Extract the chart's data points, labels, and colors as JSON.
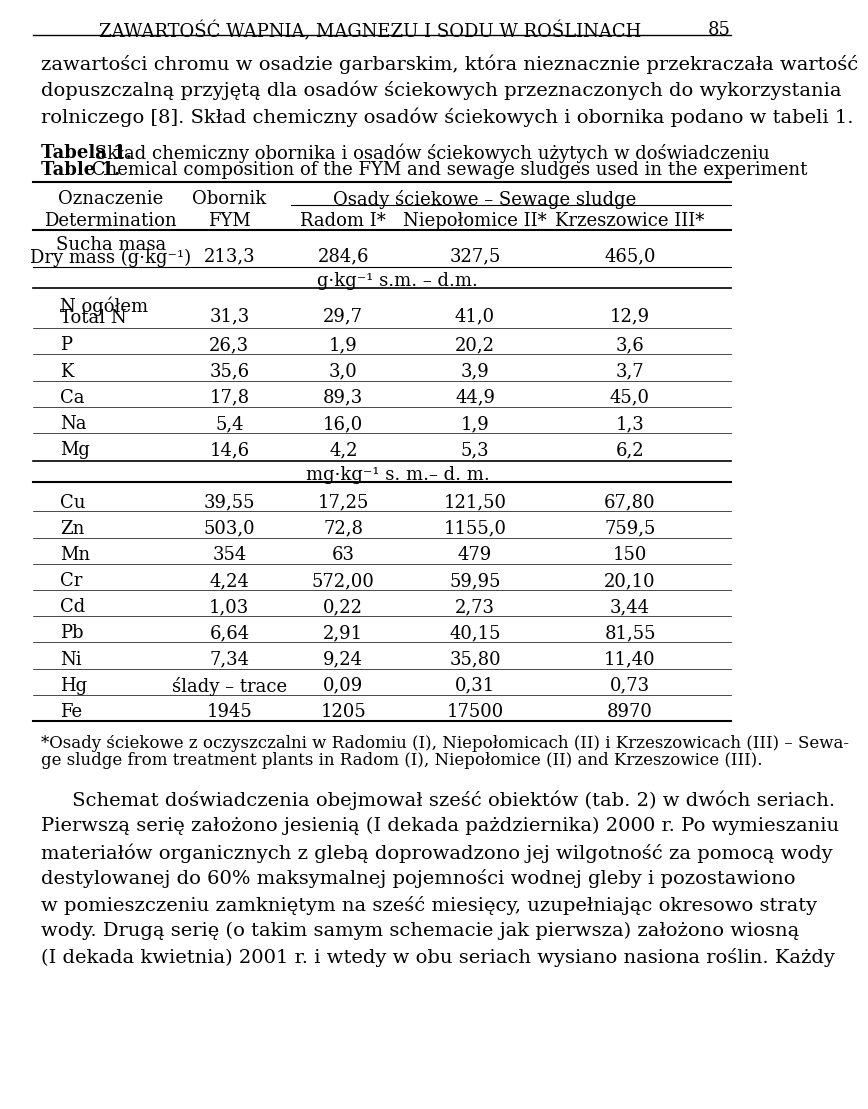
{
  "page_title": "ZAWARTOŚĆ WAPNIA, MAGNEZU I SODU W ROŚLINACH",
  "page_number": "85",
  "intro_lines": [
    "zawartości chromu w osadzie garbarskim, która nieznacznie przekraczała wartość",
    "dopuszczalną przyjętą dla osadów ściekowych przeznaczonych do wykorzystania",
    "rolniczego [8]. Skład chemiczny osadów ściekowych i obornika podano w tabeli 1."
  ],
  "table_caption_pl_bold": "Tabela 1.",
  "table_caption_pl_normal": " Skład chemiczny obornika i osadów ściekowych użytych w doświadczeniu",
  "table_caption_en_bold": "Table 1.",
  "table_caption_en_normal": " Chemical composition of the FYM and sewage sludges used in the experiment",
  "col_header1_pl": "Oznaczenie",
  "col_header1_en": "Determination",
  "col_header2_pl": "Obornik",
  "col_header2_en": "FYM",
  "col_header3": "Osady ściekowe – Sewage sludge",
  "col_header3a": "Radom I*",
  "col_header3b": "Niepołomice II*",
  "col_header3c": "Krzeszowice III*",
  "unit_row1": "g·kg⁻¹ s.m. – d.m.",
  "unit_row2": "mg·kg⁻¹ s. m.– d. m.",
  "dry_mass_pl": "Sucha masa",
  "dry_mass_en": "Dry mass (g·kg⁻¹)",
  "dry_mass_vals": [
    "213,3",
    "284,6",
    "327,5",
    "465,0"
  ],
  "g_rows": [
    {
      "label": "N ogółem\nTotal N",
      "vals": [
        "31,3",
        "29,7",
        "41,0",
        "12,9"
      ]
    },
    {
      "label": "P",
      "vals": [
        "26,3",
        "1,9",
        "20,2",
        "3,6"
      ]
    },
    {
      "label": "K",
      "vals": [
        "35,6",
        "3,0",
        "3,9",
        "3,7"
      ]
    },
    {
      "label": "Ca",
      "vals": [
        "17,8",
        "89,3",
        "44,9",
        "45,0"
      ]
    },
    {
      "label": "Na",
      "vals": [
        "5,4",
        "16,0",
        "1,9",
        "1,3"
      ]
    },
    {
      "label": "Mg",
      "vals": [
        "14,6",
        "4,2",
        "5,3",
        "6,2"
      ]
    }
  ],
  "mg_rows": [
    {
      "label": "Cu",
      "vals": [
        "39,55",
        "17,25",
        "121,50",
        "67,80"
      ]
    },
    {
      "label": "Zn",
      "vals": [
        "503,0",
        "72,8",
        "1155,0",
        "759,5"
      ]
    },
    {
      "label": "Mn",
      "vals": [
        "354",
        "63",
        "479",
        "150"
      ]
    },
    {
      "label": "Cr",
      "vals": [
        "4,24",
        "572,00",
        "59,95",
        "20,10"
      ]
    },
    {
      "label": "Cd",
      "vals": [
        "1,03",
        "0,22",
        "2,73",
        "3,44"
      ]
    },
    {
      "label": "Pb",
      "vals": [
        "6,64",
        "2,91",
        "40,15",
        "81,55"
      ]
    },
    {
      "label": "Ni",
      "vals": [
        "7,34",
        "9,24",
        "35,80",
        "11,40"
      ]
    },
    {
      "label": "Hg",
      "vals": [
        "ślady – trace",
        "0,09",
        "0,31",
        "0,73"
      ]
    },
    {
      "label": "Fe",
      "vals": [
        "1945",
        "1205",
        "17500",
        "8970"
      ]
    }
  ],
  "footnote_lines": [
    "*Osady ściekowe z oczyszczalni w Radomiu (I), Niepołomicach (II) i Krzeszowicach (III) – Sewa-",
    "ge sludge from treatment plants in Radom (I), Niepołomice (II) and Krzeszowice (III)."
  ],
  "body_lines": [
    "     Schemat doświadczenia obejmował sześć obiektów (tab. 2) w dwóch seriach.",
    "Pierwszą serię założono jesienią (I dekada pażdziernika) 2000 r. Po wymieszaniu",
    "materiałów organicznych z glebą doprowadzono jej wilgotność za pomocą wody",
    "destylowanej do 60% maksymalnej pojemności wodnej gleby i pozostawiono",
    "w pomieszczeniu zamkniętym na sześć miesięcy, uzupełniając okresowo straty",
    "wody. Drugą serię (o takim samym schemacie jak pierwsza) założono wiosną",
    "(I dekada kwietnia) 2001 r. i wtedy w obu seriach wysiano nasiona roślin. Każdy"
  ]
}
